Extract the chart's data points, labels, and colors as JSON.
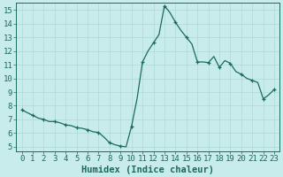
{
  "xlabel": "Humidex (Indice chaleur)",
  "xlim": [
    -0.5,
    23.5
  ],
  "ylim": [
    4.7,
    15.5
  ],
  "yticks": [
    5,
    6,
    7,
    8,
    9,
    10,
    11,
    12,
    13,
    14,
    15
  ],
  "xticks": [
    0,
    1,
    2,
    3,
    4,
    5,
    6,
    7,
    8,
    9,
    10,
    11,
    12,
    13,
    14,
    15,
    16,
    17,
    18,
    19,
    20,
    21,
    22,
    23
  ],
  "x": [
    0.0,
    0.5,
    1.0,
    1.5,
    2.0,
    2.5,
    3.0,
    3.5,
    4.0,
    4.5,
    5.0,
    5.5,
    6.0,
    6.5,
    7.0,
    7.5,
    8.0,
    8.5,
    9.0,
    9.5,
    10.0,
    10.5,
    11.0,
    11.5,
    12.0,
    12.5,
    13.0,
    13.5,
    14.0,
    14.5,
    15.0,
    15.5,
    16.0,
    16.5,
    17.0,
    17.5,
    18.0,
    18.5,
    19.0,
    19.5,
    20.0,
    20.5,
    21.0,
    21.5,
    22.0,
    22.5,
    23.0
  ],
  "y": [
    7.7,
    7.5,
    7.3,
    7.1,
    7.0,
    6.85,
    6.85,
    6.75,
    6.6,
    6.55,
    6.4,
    6.35,
    6.25,
    6.1,
    6.05,
    5.7,
    5.3,
    5.15,
    5.05,
    5.0,
    6.5,
    8.5,
    11.2,
    12.0,
    12.6,
    13.2,
    15.3,
    14.8,
    14.1,
    13.5,
    13.0,
    12.5,
    11.2,
    11.2,
    11.15,
    11.6,
    10.8,
    11.3,
    11.1,
    10.5,
    10.3,
    10.0,
    9.85,
    9.7,
    8.5,
    8.8,
    9.2
  ],
  "marker_x": [
    0,
    1,
    2,
    3,
    4,
    5,
    6,
    7,
    8,
    9,
    10,
    11,
    12,
    13,
    14,
    15,
    16,
    17,
    18,
    19,
    20,
    21,
    22,
    23
  ],
  "marker_y": [
    7.7,
    7.3,
    7.0,
    6.85,
    6.6,
    6.4,
    6.25,
    6.05,
    5.3,
    5.05,
    6.5,
    11.2,
    12.6,
    15.3,
    14.1,
    13.0,
    11.2,
    11.15,
    10.8,
    11.1,
    10.3,
    9.85,
    8.5,
    9.2
  ],
  "line_color": "#1a6b5a",
  "marker_color": "#1a6b5a",
  "bg_color": "#c8ecec",
  "grid_color": "#b0d8d8",
  "axis_color": "#1a6b5a",
  "xlabel_fontsize": 7.5,
  "tick_fontsize": 6.5
}
